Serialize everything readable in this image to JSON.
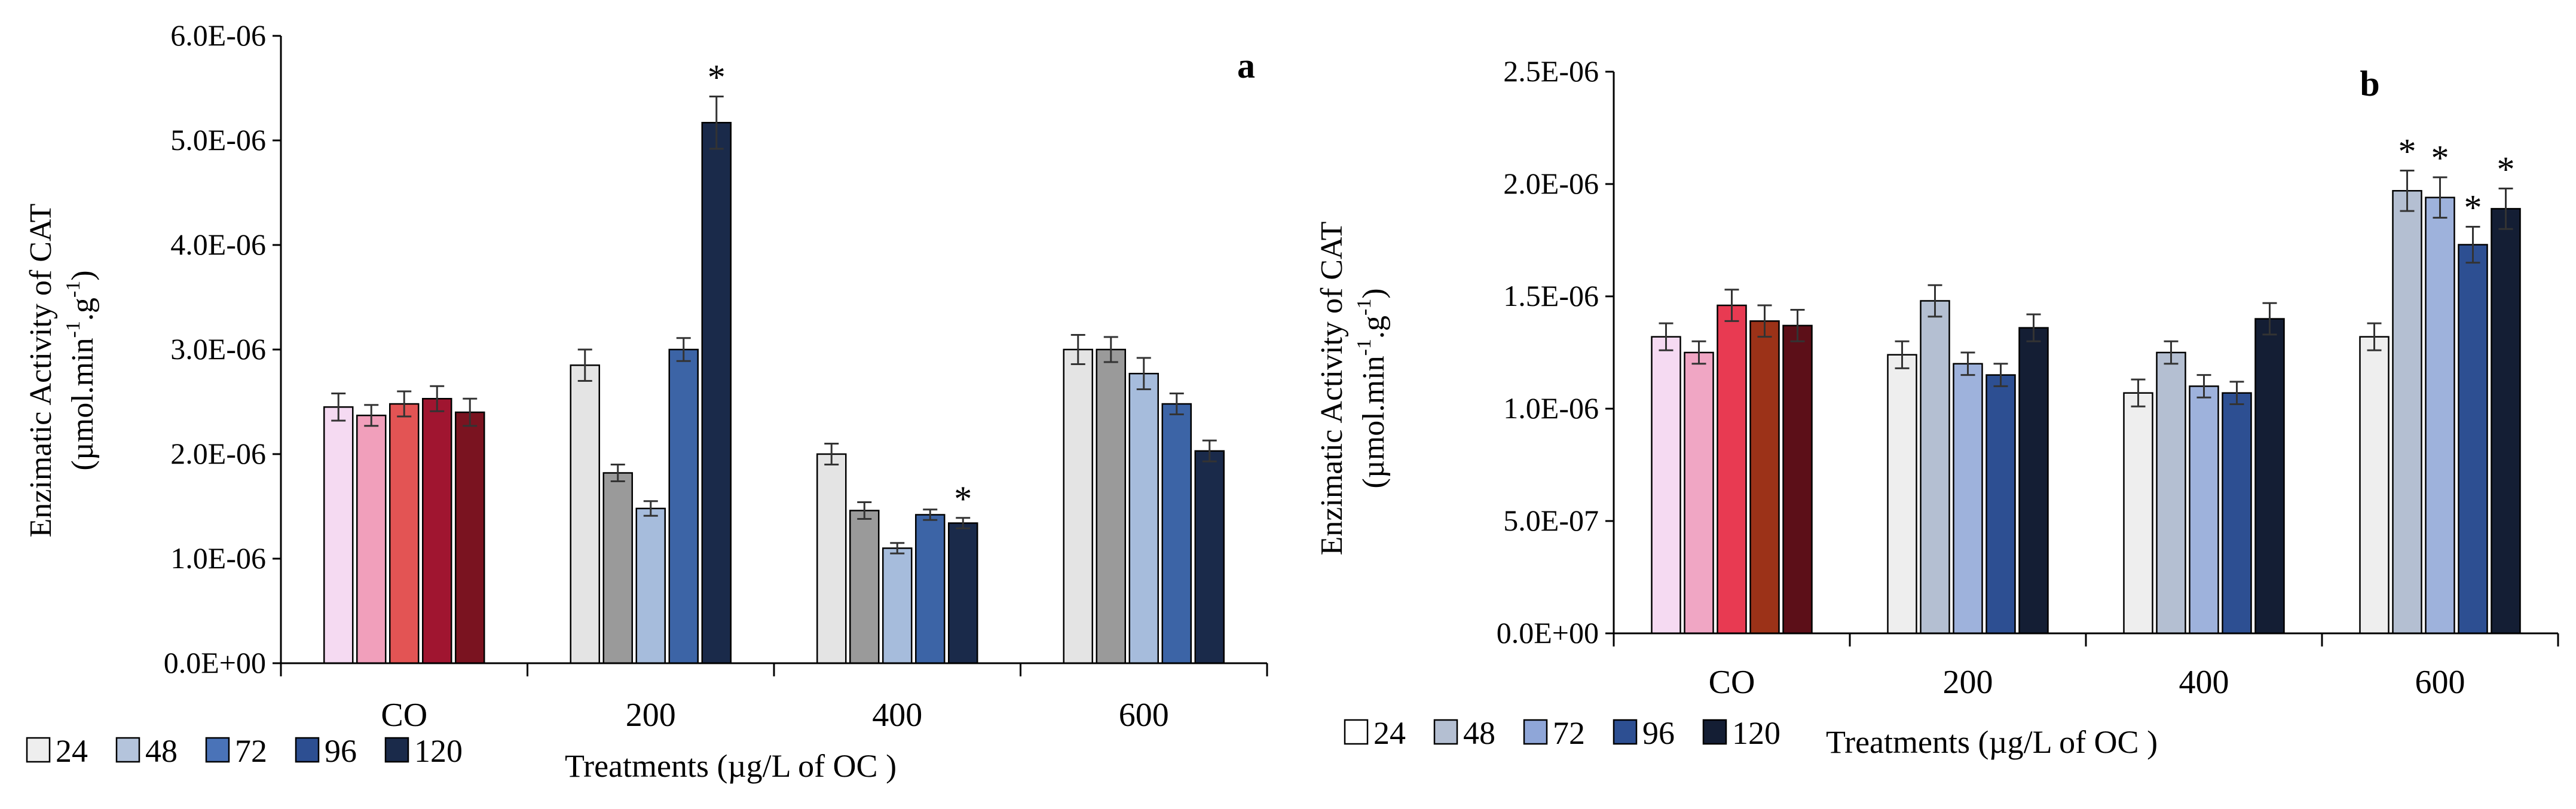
{
  "chart_data": [
    {
      "type": "bar",
      "panel_label": "a",
      "categories": [
        "CO",
        "200",
        "400",
        "600"
      ],
      "ylabel": "Enzimatic  Activity  of CAT",
      "ylabel_unit": "(µmol.min",
      "ylabel_sup1": "-1",
      "ylabel_mid": ".g",
      "ylabel_sup2": "-1",
      "ylabel_end": ")",
      "xlabel": "Treatments  (µg/L  of OC )",
      "ylim": [
        0,
        6e-06
      ],
      "yticks": [
        0,
        1e-06,
        2e-06,
        3e-06,
        4e-06,
        5e-06,
        6e-06
      ],
      "ytick_labels": [
        "0.0E+00",
        "1.0E-06",
        "2.0E-06",
        "3.0E-06",
        "4.0E-06",
        "5.0E-06",
        "6.0E-06"
      ],
      "legend_position": "bottom-left",
      "legend": [
        "24",
        "48",
        "72",
        "96",
        "120"
      ],
      "legend_colors": [
        "#eeeeee",
        "#b4c4dc",
        "#4a73b8",
        "#2d4f92",
        "#1a2a4a"
      ],
      "significance_marker": "*",
      "series": [
        {
          "name": "24",
          "values": [
            2.45e-06,
            2.85e-06,
            2e-06,
            3e-06
          ],
          "errors": [
            1.3e-07,
            1.5e-07,
            1e-07,
            1.4e-07
          ]
        },
        {
          "name": "48",
          "values": [
            2.37e-06,
            1.82e-06,
            1.46e-06,
            3e-06
          ],
          "errors": [
            1e-07,
            8e-08,
            8e-08,
            1.2e-07
          ]
        },
        {
          "name": "72",
          "values": [
            2.48e-06,
            1.48e-06,
            1.1e-06,
            2.77e-06
          ],
          "errors": [
            1.2e-07,
            7e-08,
            5e-08,
            1.5e-07
          ]
        },
        {
          "name": "96",
          "values": [
            2.53e-06,
            3e-06,
            1.42e-06,
            2.48e-06
          ],
          "errors": [
            1.2e-07,
            1.1e-07,
            5e-08,
            1e-07
          ]
        },
        {
          "name": "120",
          "values": [
            2.4e-06,
            5.17e-06,
            1.34e-06,
            2.03e-06
          ],
          "errors": [
            1.3e-07,
            2.5e-07,
            5e-08,
            1e-07
          ]
        }
      ],
      "bar_colors": [
        [
          "#f5daf2",
          "#f19fbb",
          "#e35454",
          "#a01530",
          "#7a1320"
        ],
        [
          "#e4e4e4",
          "#9a9a9a",
          "#a6bcdc",
          "#3c64a6",
          "#1a2a4a"
        ],
        [
          "#e4e4e4",
          "#9a9a9a",
          "#a6bcdc",
          "#3c64a6",
          "#1a2a4a"
        ],
        [
          "#e4e4e4",
          "#9a9a9a",
          "#a6bcdc",
          "#3c64a6",
          "#1a2a4a"
        ]
      ],
      "significant": [
        [
          1,
          4
        ],
        [
          2,
          4
        ]
      ]
    },
    {
      "type": "bar",
      "panel_label": "b",
      "categories": [
        "CO",
        "200",
        "400",
        "600"
      ],
      "ylabel": "Enzimatic  Activity  of CAT",
      "ylabel_unit": "(µmol.min",
      "ylabel_sup1": "-1",
      "ylabel_mid": ".g",
      "ylabel_sup2": "-1",
      "ylabel_end": ")",
      "xlabel": "Treatments (µg/L of OC )",
      "ylim": [
        0,
        2.5e-06
      ],
      "yticks": [
        0,
        5e-07,
        1e-06,
        1.5e-06,
        2e-06,
        2.5e-06
      ],
      "ytick_labels": [
        "0.0E+00",
        "5.0E-07",
        "1.0E-06",
        "1.5E-06",
        "2.0E-06",
        "2.5E-06"
      ],
      "legend_position": "bottom-left",
      "legend": [
        "24",
        "48",
        "72",
        "96",
        "120"
      ],
      "legend_colors": [
        "#ffffff",
        "#b4bfd2",
        "#8fa6d8",
        "#2d4f92",
        "#141e34"
      ],
      "significance_marker": "*",
      "series": [
        {
          "name": "24",
          "values": [
            1.32e-06,
            1.24e-06,
            1.07e-06,
            1.32e-06
          ],
          "errors": [
            6e-08,
            6e-08,
            6e-08,
            6e-08
          ]
        },
        {
          "name": "48",
          "values": [
            1.25e-06,
            1.48e-06,
            1.25e-06,
            1.97e-06
          ],
          "errors": [
            5e-08,
            7e-08,
            5e-08,
            9e-08
          ]
        },
        {
          "name": "72",
          "values": [
            1.46e-06,
            1.2e-06,
            1.1e-06,
            1.94e-06
          ],
          "errors": [
            7e-08,
            5e-08,
            5e-08,
            9e-08
          ]
        },
        {
          "name": "96",
          "values": [
            1.39e-06,
            1.15e-06,
            1.07e-06,
            1.73e-06
          ],
          "errors": [
            7e-08,
            5e-08,
            5e-08,
            8e-08
          ]
        },
        {
          "name": "120",
          "values": [
            1.37e-06,
            1.36e-06,
            1.4e-06,
            1.89e-06
          ],
          "errors": [
            7e-08,
            6e-08,
            7e-08,
            9e-08
          ]
        }
      ],
      "bar_colors": [
        [
          "#f5daf2",
          "#f0a6c4",
          "#e83a52",
          "#9c3218",
          "#5c0f18"
        ],
        [
          "#eeeeee",
          "#b4bfd2",
          "#9eb2dc",
          "#2d4f92",
          "#141e34"
        ],
        [
          "#eeeeee",
          "#b4bfd2",
          "#9eb2dc",
          "#2d4f92",
          "#141e34"
        ],
        [
          "#eeeeee",
          "#b4bfd2",
          "#9eb2dc",
          "#2d4f92",
          "#141e34"
        ]
      ],
      "significant": [
        [
          3,
          1
        ],
        [
          3,
          2
        ],
        [
          3,
          3
        ],
        [
          3,
          4
        ]
      ]
    }
  ]
}
